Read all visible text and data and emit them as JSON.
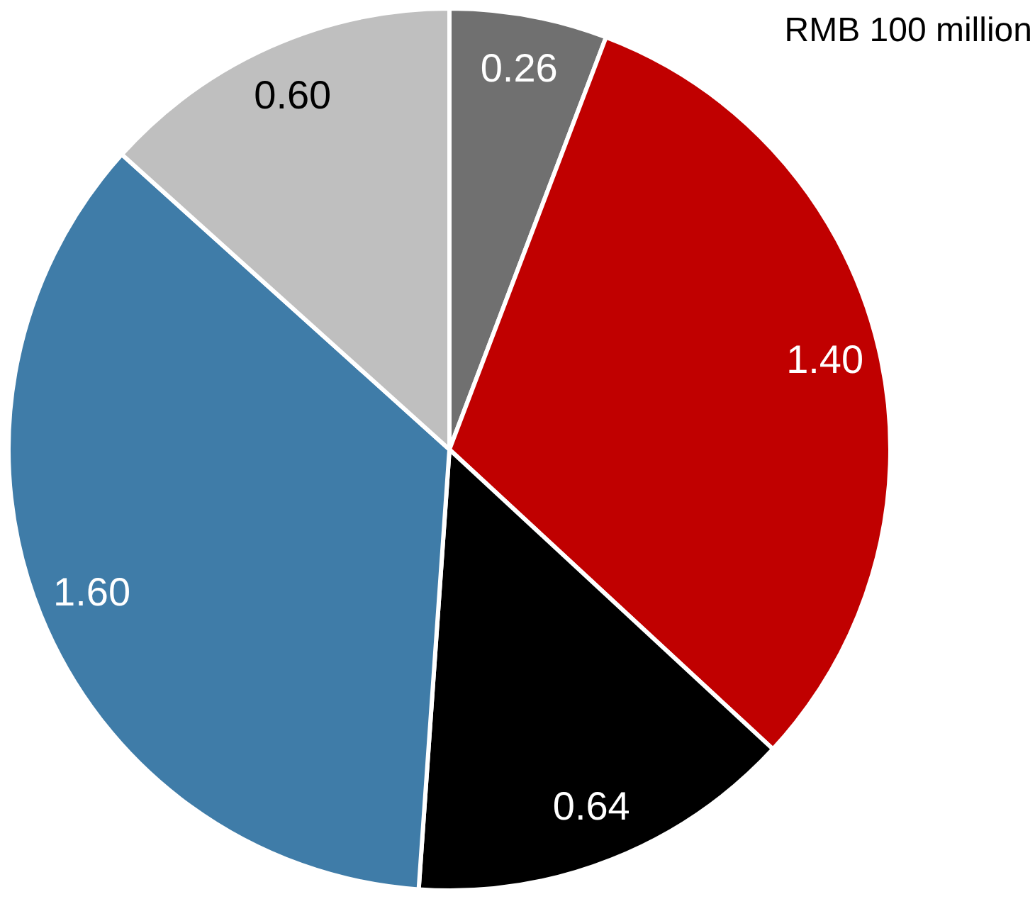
{
  "chart_data": {
    "type": "pie",
    "categories": [
      null,
      null,
      null,
      null,
      null
    ],
    "values": [
      0.26,
      1.4,
      0.64,
      1.6,
      0.6
    ],
    "colors": [
      "#707070",
      "#c00000",
      "#000000",
      "#3f7ca8",
      "#bfbfbf"
    ],
    "value_labels": [
      "0.26",
      "1.40",
      "0.64",
      "1.60",
      "0.60"
    ],
    "annotations": [
      "RMB 100 million"
    ]
  }
}
